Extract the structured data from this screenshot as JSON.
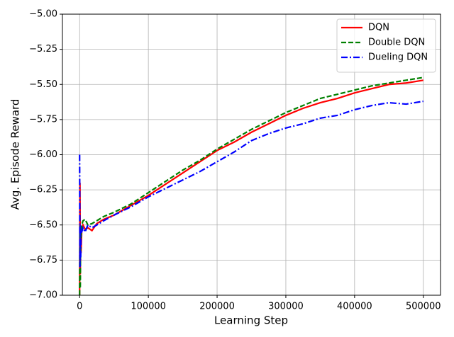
{
  "chart_data": {
    "type": "line",
    "xlabel": "Learning Step",
    "ylabel": "Avg. Episode Reward",
    "x": [
      0,
      500,
      1000,
      1500,
      2000,
      3000,
      5000,
      8000,
      12000,
      18000,
      25000,
      35000,
      50000,
      75000,
      100000,
      125000,
      150000,
      175000,
      200000,
      225000,
      250000,
      275000,
      300000,
      325000,
      350000,
      375000,
      400000,
      425000,
      450000,
      475000,
      500000
    ],
    "series": [
      {
        "name": "DQN",
        "color": "#ff0000",
        "style": "solid",
        "values": [
          -7.0,
          -6.2,
          -6.85,
          -6.6,
          -6.7,
          -6.55,
          -6.5,
          -6.53,
          -6.52,
          -6.54,
          -6.49,
          -6.46,
          -6.43,
          -6.36,
          -6.29,
          -6.21,
          -6.13,
          -6.05,
          -5.97,
          -5.91,
          -5.84,
          -5.78,
          -5.72,
          -5.67,
          -5.63,
          -5.6,
          -5.56,
          -5.53,
          -5.5,
          -5.49,
          -5.47
        ]
      },
      {
        "name": "Double DQN",
        "color": "#008000",
        "style": "dashed",
        "values": [
          -7.0,
          -6.5,
          -6.95,
          -6.55,
          -6.6,
          -6.5,
          -6.47,
          -6.46,
          -6.5,
          -6.49,
          -6.47,
          -6.44,
          -6.41,
          -6.35,
          -6.27,
          -6.19,
          -6.11,
          -6.04,
          -5.96,
          -5.89,
          -5.82,
          -5.76,
          -5.7,
          -5.65,
          -5.6,
          -5.57,
          -5.54,
          -5.51,
          -5.49,
          -5.47,
          -5.45
        ]
      },
      {
        "name": "Dueling DQN",
        "color": "#0000ff",
        "style": "dashdot",
        "values": [
          -6.0,
          -6.8,
          -6.5,
          -6.75,
          -6.55,
          -6.55,
          -6.52,
          -6.55,
          -6.5,
          -6.52,
          -6.5,
          -6.47,
          -6.43,
          -6.37,
          -6.3,
          -6.24,
          -6.18,
          -6.12,
          -6.05,
          -5.98,
          -5.9,
          -5.85,
          -5.81,
          -5.78,
          -5.74,
          -5.72,
          -5.68,
          -5.65,
          -5.63,
          -5.64,
          -5.62
        ]
      }
    ],
    "xlim": [
      -25000,
      525000
    ],
    "xticks": [
      0,
      100000,
      200000,
      300000,
      400000,
      500000
    ],
    "ylim": [
      -7.0,
      -5.0
    ],
    "yticks": [
      {
        "value": -7.0,
        "label": "−7.00"
      },
      {
        "value": -6.75,
        "label": "−6.75"
      },
      {
        "value": -6.5,
        "label": "−6.50"
      },
      {
        "value": -6.25,
        "label": "−6.25"
      },
      {
        "value": -6.0,
        "label": "−6.00"
      },
      {
        "value": -5.75,
        "label": "−5.75"
      },
      {
        "value": -5.5,
        "label": "−5.50"
      },
      {
        "value": -5.25,
        "label": "−5.25"
      },
      {
        "value": -5.0,
        "label": "−5.00"
      }
    ],
    "grid": true,
    "legend": "upper right"
  }
}
